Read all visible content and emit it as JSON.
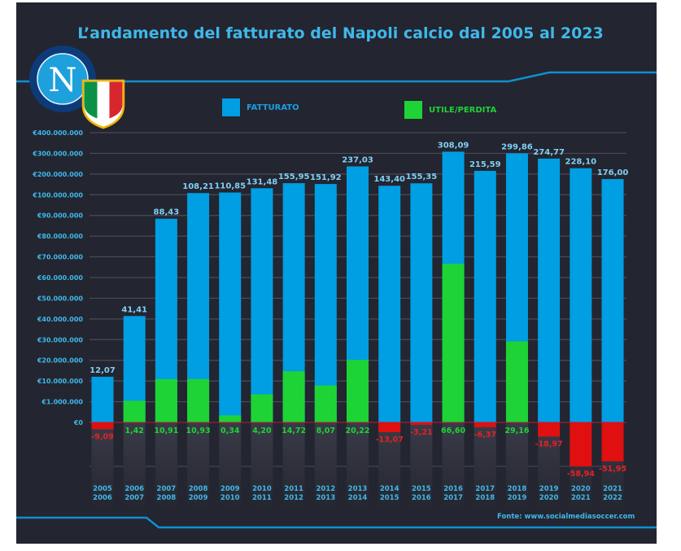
{
  "chart_data": {
    "type": "bar",
    "title": "L’andamento del fatturato del Napoli calcio dal 2005 al 2023",
    "xlabel": "",
    "ylabel": "",
    "y_ticks": [
      "€400.000.000",
      "€300.000.000",
      "€200.000.000",
      "€100.000.000",
      "€90.000.000",
      "€80.000.000",
      "€70.000.000",
      "€60.000.000",
      "€50.000.000",
      "€40.000.000",
      "€30.000.000",
      "€20.000.000",
      "€10.000.000",
      "€1.000.000",
      "€0"
    ],
    "y_tick_values": [
      400,
      300,
      200,
      100,
      90,
      80,
      70,
      60,
      50,
      40,
      30,
      20,
      10,
      1,
      0
    ],
    "y_unit": "milioni di euro",
    "axis_scale": "non-linear (piecewise)",
    "grid": true,
    "legend_position": "top",
    "categories": [
      [
        "2005",
        "2006"
      ],
      [
        "2006",
        "2007"
      ],
      [
        "2007",
        "2008"
      ],
      [
        "2008",
        "2009"
      ],
      [
        "2009",
        "2010"
      ],
      [
        "2010",
        "2011"
      ],
      [
        "2011",
        "2012"
      ],
      [
        "2012",
        "2013"
      ],
      [
        "2013",
        "2014"
      ],
      [
        "2014",
        "2015"
      ],
      [
        "2015",
        "2016"
      ],
      [
        "2016",
        "2017"
      ],
      [
        "2017",
        "2018"
      ],
      [
        "2018",
        "2019"
      ],
      [
        "2019",
        "2020"
      ],
      [
        "2020",
        "2021"
      ],
      [
        "2021",
        "2022"
      ]
    ],
    "series": [
      {
        "name": "FATTURATO",
        "color": "#009ee3",
        "values": [
          12.07,
          41.41,
          88.43,
          108.21,
          110.85,
          131.48,
          155.95,
          151.92,
          237.03,
          143.4,
          155.35,
          308.09,
          215.59,
          299.86,
          274.77,
          228.1,
          176.0
        ],
        "labels": [
          "12,07",
          "41,41",
          "88,43",
          "108,21",
          "110,85",
          "131,48",
          "155,95",
          "151,92",
          "237,03",
          "143,40",
          "155,35",
          "308,09",
          "215,59",
          "299,86",
          "274,77",
          "228,10",
          "176,00"
        ]
      },
      {
        "name": "UTILE/PERDITA",
        "color": "#1ed336",
        "negative_color": "#e01010",
        "values": [
          -9.09,
          1.42,
          10.91,
          10.93,
          0.34,
          4.2,
          14.72,
          8.07,
          20.22,
          -13.07,
          -3.21,
          66.6,
          -6.37,
          29.16,
          -18.97,
          -58.94,
          -51.95
        ],
        "labels": [
          "-9,09",
          "1,42",
          "10,91",
          "10,93",
          "0,34",
          "4,20",
          "14,72",
          "8,07",
          "20,22",
          "-13,07",
          "-3,21",
          "66,60",
          "-6,37",
          "29,16",
          "-18,97",
          "-58,94",
          "-51,95"
        ]
      }
    ]
  },
  "logo": {
    "letter": "N"
  },
  "source": "Fonte: www.socialmediasoccer.com"
}
